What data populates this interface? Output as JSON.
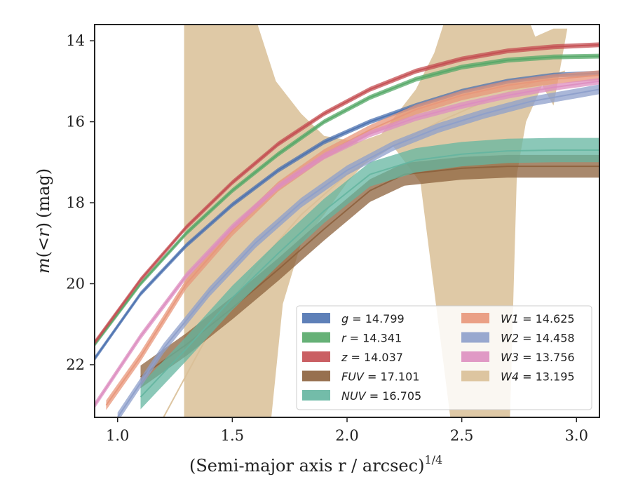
{
  "chart_data": {
    "type": "line",
    "title": "",
    "xlabel": "(Semi-major axis r / arcsec)",
    "xlabel_exponent": "1/4",
    "ylabel_prefix": "m(< r) (mag)",
    "ylabel_parts": {
      "m": "m",
      "lt": "(<",
      "r": "r",
      "close": ")",
      "unit": "(mag)"
    },
    "xlim": [
      0.9,
      3.1
    ],
    "ylim": [
      23.3,
      13.6
    ],
    "y_inverted": true,
    "x_ticks": [
      1.0,
      1.5,
      2.0,
      2.5,
      3.0
    ],
    "x_tick_labels": [
      "1.0",
      "1.5",
      "2.0",
      "2.5",
      "3.0"
    ],
    "y_ticks": [
      14,
      16,
      18,
      20,
      22
    ],
    "y_tick_labels": [
      "14",
      "16",
      "18",
      "20",
      "22"
    ],
    "grid": false,
    "legend_placement": "lower-right",
    "series": [
      {
        "name": "g",
        "label_value": "= 14.799",
        "color": "#4c72b0",
        "points": [
          [
            0.9,
            21.85
          ],
          [
            1.1,
            20.25
          ],
          [
            1.3,
            19.05
          ],
          [
            1.5,
            18.05
          ],
          [
            1.7,
            17.2
          ],
          [
            1.9,
            16.5
          ],
          [
            2.1,
            16.0
          ],
          [
            2.3,
            15.6
          ],
          [
            2.5,
            15.25
          ],
          [
            2.7,
            15.0
          ],
          [
            2.9,
            14.85
          ],
          [
            3.1,
            14.8
          ]
        ],
        "band": 0.06
      },
      {
        "name": "r",
        "label_value": "= 14.341",
        "color": "#55a868",
        "points": [
          [
            0.9,
            21.5
          ],
          [
            1.1,
            20.0
          ],
          [
            1.3,
            18.75
          ],
          [
            1.5,
            17.7
          ],
          [
            1.7,
            16.8
          ],
          [
            1.9,
            16.0
          ],
          [
            2.1,
            15.4
          ],
          [
            2.3,
            14.95
          ],
          [
            2.5,
            14.65
          ],
          [
            2.7,
            14.48
          ],
          [
            2.9,
            14.4
          ],
          [
            3.1,
            14.38
          ]
        ],
        "band": 0.06
      },
      {
        "name": "z",
        "label_value": "= 14.037",
        "color": "#c44e52",
        "points": [
          [
            0.9,
            21.45
          ],
          [
            1.1,
            19.9
          ],
          [
            1.3,
            18.6
          ],
          [
            1.5,
            17.5
          ],
          [
            1.7,
            16.55
          ],
          [
            1.9,
            15.8
          ],
          [
            2.1,
            15.2
          ],
          [
            2.3,
            14.75
          ],
          [
            2.5,
            14.45
          ],
          [
            2.7,
            14.25
          ],
          [
            2.9,
            14.15
          ],
          [
            3.1,
            14.1
          ]
        ],
        "band": 0.06
      },
      {
        "name": "FUV",
        "label_value": "= 17.101",
        "color": "#8c613c",
        "points": [
          [
            1.1,
            22.3
          ],
          [
            1.3,
            21.5
          ],
          [
            1.5,
            20.6
          ],
          [
            1.7,
            19.65
          ],
          [
            1.9,
            18.65
          ],
          [
            2.1,
            17.7
          ],
          [
            2.25,
            17.3
          ],
          [
            2.5,
            17.15
          ],
          [
            2.7,
            17.1
          ],
          [
            2.9,
            17.1
          ],
          [
            3.1,
            17.1
          ]
        ],
        "band": 0.28
      },
      {
        "name": "NUV",
        "label_value": "= 16.705",
        "color": "#64b5a0",
        "points": [
          [
            1.1,
            22.8
          ],
          [
            1.3,
            21.6
          ],
          [
            1.5,
            20.35
          ],
          [
            1.7,
            19.25
          ],
          [
            1.9,
            18.2
          ],
          [
            2.1,
            17.3
          ],
          [
            2.3,
            16.95
          ],
          [
            2.5,
            16.8
          ],
          [
            2.7,
            16.72
          ],
          [
            2.9,
            16.7
          ],
          [
            3.1,
            16.7
          ]
        ],
        "band": 0.3
      },
      {
        "name": "W1",
        "label_value": "= 14.625",
        "color": "#e8967a",
        "points": [
          [
            0.95,
            23.0
          ],
          [
            1.1,
            21.8
          ],
          [
            1.3,
            20.0
          ],
          [
            1.5,
            18.7
          ],
          [
            1.7,
            17.6
          ],
          [
            1.9,
            16.8
          ],
          [
            2.1,
            16.2
          ],
          [
            2.3,
            15.7
          ],
          [
            2.5,
            15.35
          ],
          [
            2.7,
            15.1
          ],
          [
            2.9,
            14.95
          ],
          [
            3.1,
            14.85
          ]
        ],
        "band": 0.12
      },
      {
        "name": "W2",
        "label_value": "= 14.458",
        "color": "#8d9fcb",
        "points": [
          [
            1.0,
            23.3
          ],
          [
            1.2,
            21.6
          ],
          [
            1.4,
            20.2
          ],
          [
            1.6,
            19.0
          ],
          [
            1.8,
            18.0
          ],
          [
            2.0,
            17.2
          ],
          [
            2.2,
            16.6
          ],
          [
            2.4,
            16.15
          ],
          [
            2.6,
            15.8
          ],
          [
            2.8,
            15.5
          ],
          [
            3.0,
            15.3
          ],
          [
            3.1,
            15.2
          ]
        ],
        "band": 0.12
      },
      {
        "name": "W3",
        "label_value": "= 13.756",
        "color": "#dd8ec0",
        "points": [
          [
            0.9,
            23.0
          ],
          [
            1.1,
            21.3
          ],
          [
            1.3,
            19.8
          ],
          [
            1.5,
            18.6
          ],
          [
            1.7,
            17.6
          ],
          [
            1.9,
            16.85
          ],
          [
            2.1,
            16.3
          ],
          [
            2.3,
            15.9
          ],
          [
            2.5,
            15.6
          ],
          [
            2.7,
            15.35
          ],
          [
            2.9,
            15.15
          ],
          [
            3.1,
            15.0
          ]
        ],
        "band": 0.08
      },
      {
        "name": "W4",
        "label_value": "= 13.195",
        "color": "#d9bf97",
        "points": [
          [
            1.2,
            23.3
          ],
          [
            1.4,
            21.2
          ],
          [
            1.6,
            19.6
          ],
          [
            1.8,
            18.3
          ],
          [
            2.0,
            17.3
          ],
          [
            2.2,
            16.6
          ],
          [
            2.4,
            16.0
          ],
          [
            2.6,
            15.5
          ],
          [
            2.8,
            15.05
          ],
          [
            2.95,
            14.75
          ]
        ],
        "band_upper": [
          [
            1.29,
            13.6
          ],
          [
            1.52,
            13.6
          ],
          [
            1.61,
            13.6
          ],
          [
            1.69,
            15.0
          ],
          [
            1.8,
            15.8
          ],
          [
            1.9,
            16.35
          ],
          [
            2.05,
            16.5
          ],
          [
            2.15,
            16.3
          ],
          [
            2.3,
            15.2
          ],
          [
            2.38,
            14.3
          ],
          [
            2.42,
            13.6
          ],
          [
            2.8,
            13.6
          ],
          [
            2.82,
            13.9
          ],
          [
            2.9,
            13.7
          ],
          [
            2.96,
            13.7
          ],
          [
            3.1,
            13.7
          ]
        ],
        "band_lower": [
          [
            3.1,
            13.7
          ],
          [
            2.96,
            13.7
          ],
          [
            2.9,
            15.6
          ],
          [
            2.85,
            15.1
          ],
          [
            2.78,
            16.0
          ],
          [
            2.74,
            17.3
          ],
          [
            2.71,
            23.3
          ],
          [
            2.45,
            23.3
          ],
          [
            2.32,
            17.5
          ],
          [
            2.2,
            16.6
          ],
          [
            2.1,
            16.9
          ],
          [
            2.0,
            17.5
          ],
          [
            1.9,
            18.3
          ],
          [
            1.8,
            19.0
          ],
          [
            1.72,
            20.5
          ],
          [
            1.67,
            23.3
          ],
          [
            1.29,
            23.3
          ]
        ]
      }
    ]
  }
}
